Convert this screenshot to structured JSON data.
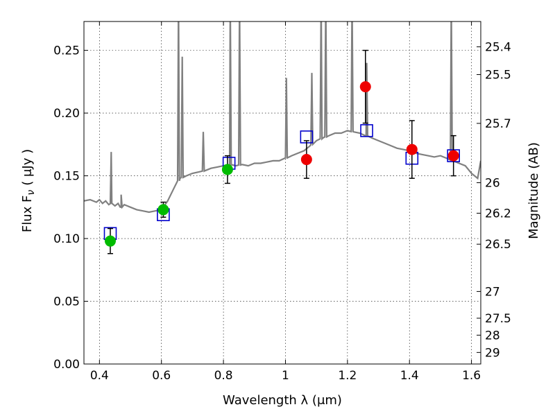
{
  "chart_data": {
    "type": "scatter",
    "xlabel": "Wavelength  λ (μm)",
    "ylabel_left": "Flux  F",
    "ylabel_left_sub": "ν",
    "ylabel_left_unit": "( μJy )",
    "ylabel_right": "Magnitude (AB)",
    "xlim": [
      0.35,
      1.63
    ],
    "ylim": [
      0.0,
      0.273
    ],
    "grid": true,
    "x_ticks": [
      {
        "value": 0.4,
        "label": "0.4"
      },
      {
        "value": 0.6,
        "label": "0.6"
      },
      {
        "value": 0.8,
        "label": "0.8"
      },
      {
        "value": 1.0,
        "label": "1"
      },
      {
        "value": 1.2,
        "label": "1.2"
      },
      {
        "value": 1.4,
        "label": "1.4"
      },
      {
        "value": 1.6,
        "label": "1.6"
      }
    ],
    "y_ticks": [
      {
        "value": 0.0,
        "label": "0.00"
      },
      {
        "value": 0.05,
        "label": "0.05"
      },
      {
        "value": 0.1,
        "label": "0.10"
      },
      {
        "value": 0.15,
        "label": "0.15"
      },
      {
        "value": 0.2,
        "label": "0.20"
      },
      {
        "value": 0.25,
        "label": "0.25"
      }
    ],
    "right_ticks": [
      {
        "flux": 0.2528,
        "label": "25.4"
      },
      {
        "flux": 0.2307,
        "label": "25.5"
      },
      {
        "flux": 0.1918,
        "label": "25.7"
      },
      {
        "flux": 0.1445,
        "label": "26"
      },
      {
        "flux": 0.1202,
        "label": "26.2"
      },
      {
        "flux": 0.0955,
        "label": "26.5"
      },
      {
        "flux": 0.0578,
        "label": "27"
      },
      {
        "flux": 0.0365,
        "label": "27.5"
      },
      {
        "flux": 0.023,
        "label": "28"
      },
      {
        "flux": 0.0092,
        "label": "29"
      }
    ],
    "series": [
      {
        "kind": "line",
        "color": "#808080",
        "x": [
          0.35,
          0.37,
          0.39,
          0.4,
          0.41,
          0.42,
          0.43,
          0.44,
          0.45,
          0.46,
          0.47,
          0.48,
          0.49,
          0.5,
          0.52,
          0.54,
          0.56,
          0.58,
          0.6,
          0.62,
          0.64,
          0.66,
          0.68,
          0.7,
          0.72,
          0.74,
          0.76,
          0.78,
          0.8,
          0.82,
          0.84,
          0.86,
          0.88,
          0.9,
          0.92,
          0.94,
          0.96,
          0.98,
          1.0,
          1.02,
          1.04,
          1.06,
          1.08,
          1.1,
          1.12,
          1.14,
          1.16,
          1.18,
          1.2,
          1.22,
          1.24,
          1.26,
          1.28,
          1.3,
          1.32,
          1.34,
          1.36,
          1.38,
          1.4,
          1.42,
          1.44,
          1.46,
          1.48,
          1.5,
          1.52,
          1.54,
          1.56,
          1.58,
          1.6,
          1.62,
          1.63
        ],
        "y": [
          0.13,
          0.131,
          0.129,
          0.131,
          0.128,
          0.13,
          0.127,
          0.128,
          0.126,
          0.128,
          0.125,
          0.127,
          0.126,
          0.125,
          0.123,
          0.122,
          0.121,
          0.122,
          0.123,
          0.13,
          0.14,
          0.148,
          0.15,
          0.152,
          0.153,
          0.154,
          0.156,
          0.157,
          0.158,
          0.159,
          0.158,
          0.159,
          0.158,
          0.16,
          0.16,
          0.161,
          0.162,
          0.162,
          0.164,
          0.166,
          0.168,
          0.17,
          0.174,
          0.178,
          0.18,
          0.182,
          0.184,
          0.184,
          0.186,
          0.185,
          0.184,
          0.182,
          0.18,
          0.178,
          0.176,
          0.174,
          0.172,
          0.171,
          0.17,
          0.168,
          0.167,
          0.166,
          0.165,
          0.166,
          0.164,
          0.162,
          0.16,
          0.158,
          0.152,
          0.148,
          0.162
        ]
      }
    ],
    "emission_lines": [
      {
        "x": 0.438,
        "peak": 0.169
      },
      {
        "x": 0.47,
        "peak": 0.135
      },
      {
        "x": 0.655,
        "peak": 0.29
      },
      {
        "x": 0.667,
        "peak": 0.245
      },
      {
        "x": 0.735,
        "peak": 0.185
      },
      {
        "x": 0.822,
        "peak": 0.29
      },
      {
        "x": 0.852,
        "peak": 0.29
      },
      {
        "x": 1.003,
        "peak": 0.228
      },
      {
        "x": 1.085,
        "peak": 0.232
      },
      {
        "x": 1.115,
        "peak": 0.29
      },
      {
        "x": 1.13,
        "peak": 0.29
      },
      {
        "x": 1.215,
        "peak": 0.29
      },
      {
        "x": 1.262,
        "peak": 0.24
      },
      {
        "x": 1.535,
        "peak": 0.29
      }
    ],
    "model_points": {
      "color": "#0000cc",
      "x": [
        0.435,
        0.606,
        0.818,
        1.068,
        1.262,
        1.408,
        1.542
      ],
      "y": [
        0.104,
        0.119,
        0.16,
        0.181,
        0.186,
        0.164,
        0.166
      ]
    },
    "green_points": {
      "color": "#00bb00",
      "x": [
        0.435,
        0.606,
        0.813
      ],
      "y": [
        0.098,
        0.123,
        0.155
      ],
      "err": [
        0.01,
        0.006,
        0.011
      ]
    },
    "red_points": {
      "color": "#ee0000",
      "x": [
        1.068,
        1.258,
        1.408,
        1.542
      ],
      "y": [
        0.163,
        0.221,
        0.171,
        0.166
      ],
      "err": [
        0.015,
        0.029,
        0.023,
        0.016
      ]
    }
  }
}
